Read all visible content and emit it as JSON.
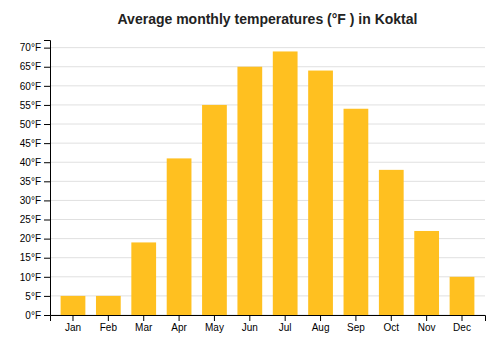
{
  "chart_data": {
    "type": "bar",
    "title": "Average monthly temperatures (°F ) in Koktal",
    "categories": [
      "Jan",
      "Feb",
      "Mar",
      "Apr",
      "May",
      "Jun",
      "Jul",
      "Aug",
      "Sep",
      "Oct",
      "Nov",
      "Dec"
    ],
    "values": [
      5,
      5,
      19,
      41,
      55,
      65,
      69,
      64,
      54,
      38,
      22,
      10
    ],
    "color": "#FFC020",
    "ylim": [
      0,
      72
    ],
    "yticks": [
      {
        "value": 0,
        "label": "0°F"
      },
      {
        "value": 5,
        "label": "5°F"
      },
      {
        "value": 10,
        "label": "10°F"
      },
      {
        "value": 15,
        "label": "15°F"
      },
      {
        "value": 20,
        "label": "20°F"
      },
      {
        "value": 25,
        "label": "25°F"
      },
      {
        "value": 30,
        "label": "30°F"
      },
      {
        "value": 35,
        "label": "35°F"
      },
      {
        "value": 40,
        "label": "40°F"
      },
      {
        "value": 45,
        "label": "45°F"
      },
      {
        "value": 50,
        "label": "50°F"
      },
      {
        "value": 55,
        "label": "55°F"
      },
      {
        "value": 60,
        "label": "60°F"
      },
      {
        "value": 65,
        "label": "65°F"
      },
      {
        "value": 70,
        "label": "70°F"
      }
    ],
    "grid": true
  }
}
